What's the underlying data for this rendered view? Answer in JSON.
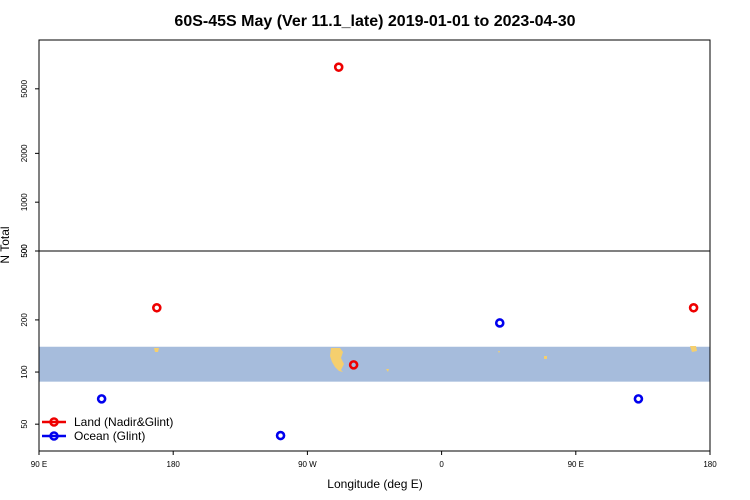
{
  "chart_data": {
    "type": "scatter",
    "title": "60S-45S May (Ver 11.1_late)   2019-01-01 to 2023-04-30",
    "xlabel": "Longitude (deg E)",
    "ylabel": "N Total",
    "x_ticks": [
      {
        "value": 90,
        "label": "90 E"
      },
      {
        "value": 180,
        "label": "180"
      },
      {
        "value": 270,
        "label": "90 W"
      },
      {
        "value": 360,
        "label": "0"
      },
      {
        "value": 450,
        "label": "90 E"
      },
      {
        "value": 540,
        "label": "180"
      }
    ],
    "xlim": [
      90,
      540
    ],
    "upper_panel": {
      "scale": "log",
      "ylim": [
        500,
        10000
      ],
      "y_ticks": [
        500,
        1000,
        2000,
        5000
      ]
    },
    "lower_panel": {
      "scale": "log",
      "ylim": [
        35,
        500
      ],
      "y_ticks": [
        50,
        100,
        200,
        500
      ]
    },
    "latitude_band": {
      "color": "#a6bcdc",
      "y_range": [
        88,
        140
      ]
    },
    "land_color": "#f5cf6e",
    "series": [
      {
        "name": "Land (Nadir&Glint)",
        "color": "#ee0000",
        "points": [
          [
            169,
            235
          ],
          [
            291,
            6800
          ],
          [
            301,
            110
          ],
          [
            529,
            235
          ]
        ]
      },
      {
        "name": "Ocean (Glint)",
        "color": "#0000ee",
        "points": [
          [
            132,
            70
          ],
          [
            252,
            43
          ],
          [
            399,
            192
          ],
          [
            492,
            70
          ]
        ]
      }
    ]
  }
}
